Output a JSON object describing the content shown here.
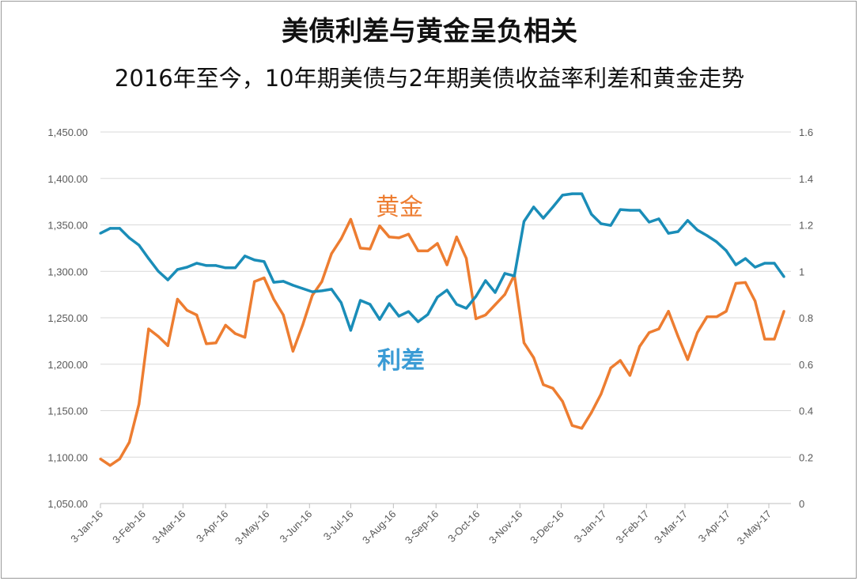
{
  "title": "美债利差与黄金呈负相关",
  "subtitle": "2016年至今，10年期美债与2年期美债收益率利差和黄金走势",
  "chart_data": {
    "type": "line",
    "title": "美债利差与黄金呈负相关",
    "subtitle": "2016年至今，10年期美债与2年期美债收益率利差和黄金走势",
    "colors": {
      "gold": "#ED7D31",
      "spread": "#1A8DB8",
      "spread_label": "#3A9BD5"
    },
    "grid": true,
    "y_left": {
      "lim": [
        1050,
        1450
      ],
      "ticks": [
        "1,050.00",
        "1,100.00",
        "1,150.00",
        "1,200.00",
        "1,250.00",
        "1,300.00",
        "1,350.00",
        "1,400.00",
        "1,450.00"
      ]
    },
    "y_right": {
      "lim": [
        0,
        1.6
      ],
      "ticks": [
        "0",
        "0.2",
        "0.4",
        "0.6",
        "0.8",
        "1",
        "1.2",
        "1.4",
        "1.6"
      ]
    },
    "x_ticks": [
      "3-Jan-16",
      "3-Feb-16",
      "3-Mar-16",
      "3-Apr-16",
      "3-May-16",
      "3-Jun-16",
      "3-Jul-16",
      "3-Aug-16",
      "3-Sep-16",
      "3-Oct-16",
      "3-Nov-16",
      "3-Dec-16",
      "3-Jan-17",
      "3-Feb-17",
      "3-Mar-17",
      "3-Apr-17",
      "3-May-17"
    ],
    "x_tick_dates": [
      "2016-01-03",
      "2016-02-03",
      "2016-03-03",
      "2016-04-03",
      "2016-05-03",
      "2016-06-03",
      "2016-07-03",
      "2016-08-03",
      "2016-09-03",
      "2016-10-03",
      "2016-11-03",
      "2016-12-03",
      "2017-01-03",
      "2017-02-03",
      "2017-03-03",
      "2017-04-03",
      "2017-05-03"
    ],
    "x": [
      "2016-01-03",
      "2016-01-10",
      "2016-01-17",
      "2016-01-24",
      "2016-01-31",
      "2016-02-07",
      "2016-02-14",
      "2016-02-21",
      "2016-02-28",
      "2016-03-06",
      "2016-03-13",
      "2016-03-20",
      "2016-03-27",
      "2016-04-03",
      "2016-04-10",
      "2016-04-17",
      "2016-04-24",
      "2016-05-01",
      "2016-05-08",
      "2016-05-15",
      "2016-05-22",
      "2016-05-29",
      "2016-06-05",
      "2016-06-12",
      "2016-06-19",
      "2016-06-26",
      "2016-07-03",
      "2016-07-10",
      "2016-07-17",
      "2016-07-24",
      "2016-07-31",
      "2016-08-07",
      "2016-08-14",
      "2016-08-21",
      "2016-08-28",
      "2016-09-04",
      "2016-09-11",
      "2016-09-18",
      "2016-09-25",
      "2016-10-02",
      "2016-10-09",
      "2016-10-16",
      "2016-10-23",
      "2016-10-30",
      "2016-11-06",
      "2016-11-13",
      "2016-11-20",
      "2016-11-27",
      "2016-12-04",
      "2016-12-11",
      "2016-12-18",
      "2016-12-25",
      "2017-01-01",
      "2017-01-08",
      "2017-01-15",
      "2017-01-22",
      "2017-01-29",
      "2017-02-05",
      "2017-02-12",
      "2017-02-19",
      "2017-02-26",
      "2017-03-05",
      "2017-03-12",
      "2017-03-19",
      "2017-03-26",
      "2017-04-02",
      "2017-04-09",
      "2017-04-16",
      "2017-04-23",
      "2017-04-30",
      "2017-05-07",
      "2017-05-14"
    ],
    "series": [
      {
        "name": "黄金",
        "axis": "left",
        "color": "#ED7D31",
        "values": [
          1098,
          1091,
          1098,
          1116,
          1157,
          1238,
          1230,
          1220,
          1270,
          1258,
          1253,
          1222,
          1223,
          1242,
          1233,
          1229,
          1289,
          1293,
          1270,
          1253,
          1214,
          1242,
          1274,
          1289,
          1319,
          1335,
          1356,
          1325,
          1324,
          1349,
          1337,
          1336,
          1340,
          1322,
          1322,
          1330,
          1307,
          1337,
          1314,
          1249,
          1253,
          1264,
          1275,
          1296,
          1223,
          1207,
          1178,
          1174,
          1160,
          1134,
          1131,
          1148,
          1168,
          1196,
          1204,
          1188,
          1219,
          1234,
          1238,
          1257,
          1230,
          1205,
          1234,
          1251,
          1251,
          1257,
          1287,
          1288,
          1268,
          1227,
          1227,
          1257
        ]
      },
      {
        "name": "利差",
        "axis": "right",
        "color": "#1A8DB8",
        "values": [
          1.164,
          1.185,
          1.185,
          1.144,
          1.113,
          1.055,
          1.001,
          0.963,
          1.008,
          1.018,
          1.035,
          1.025,
          1.025,
          1.015,
          1.015,
          1.066,
          1.049,
          1.042,
          0.953,
          0.957,
          0.94,
          0.926,
          0.912,
          0.916,
          0.923,
          0.865,
          0.746,
          0.875,
          0.858,
          0.793,
          0.861,
          0.807,
          0.827,
          0.783,
          0.814,
          0.889,
          0.919,
          0.858,
          0.841,
          0.892,
          0.96,
          0.909,
          0.991,
          0.98,
          1.215,
          1.277,
          1.229,
          1.277,
          1.328,
          1.334,
          1.334,
          1.246,
          1.205,
          1.198,
          1.266,
          1.263,
          1.263,
          1.212,
          1.226,
          1.164,
          1.171,
          1.219,
          1.178,
          1.154,
          1.127,
          1.089,
          1.028,
          1.055,
          1.018,
          1.035,
          1.035,
          0.977
        ]
      }
    ],
    "annotations": {
      "gold_label": "黄金",
      "spread_label": "利差"
    }
  }
}
